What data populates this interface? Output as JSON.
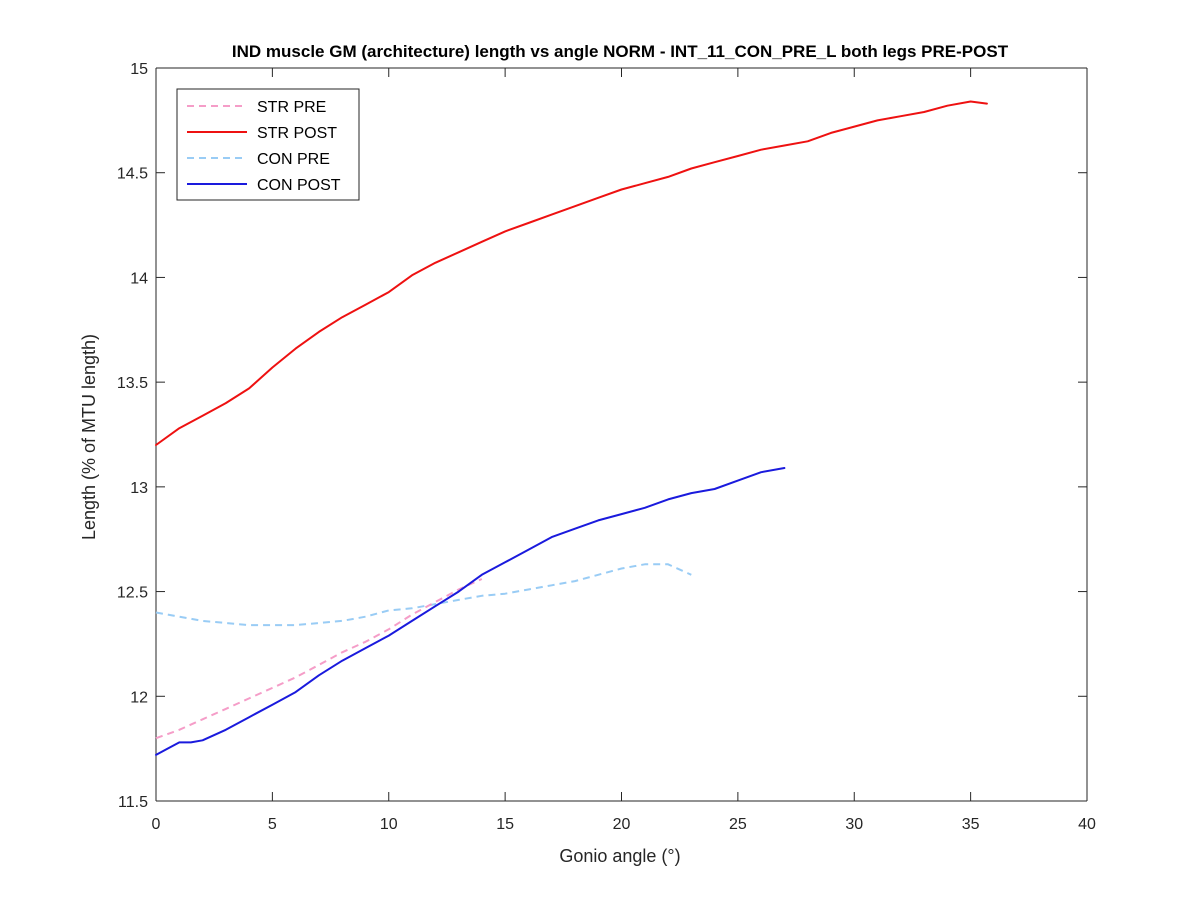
{
  "chart_data": {
    "type": "line",
    "title": "IND muscle GM (architecture) length vs angle NORM - INT_11_CON_PRE_L both legs PRE-POST",
    "xlabel": "Gonio angle (°)",
    "ylabel": "Length (% of MTU length)",
    "xlim": [
      0,
      40
    ],
    "ylim": [
      11.5,
      15
    ],
    "xticks": [
      "0",
      "5",
      "10",
      "15",
      "20",
      "25",
      "30",
      "35",
      "40"
    ],
    "yticks": [
      "11.5",
      "12",
      "12.5",
      "13",
      "13.5",
      "14",
      "14.5",
      "15"
    ],
    "grid": false,
    "legend_position": "top-left",
    "series": [
      {
        "name": "STR PRE",
        "color": "#F59DC8",
        "dashed": true,
        "x": [
          0,
          1,
          2,
          3,
          4,
          5,
          6,
          7,
          8,
          9,
          10,
          11,
          12,
          13,
          14
        ],
        "y": [
          11.8,
          11.84,
          11.89,
          11.94,
          11.99,
          12.04,
          12.09,
          12.15,
          12.21,
          12.26,
          12.32,
          12.39,
          12.45,
          12.51,
          12.56
        ]
      },
      {
        "name": "STR POST",
        "color": "#EE1111",
        "dashed": false,
        "x": [
          0,
          1,
          2,
          3,
          4,
          5,
          6,
          7,
          8,
          9,
          10,
          11,
          12,
          13,
          14,
          15,
          16,
          17,
          18,
          19,
          20,
          21,
          22,
          23,
          24,
          25,
          26,
          27,
          28,
          29,
          30,
          31,
          32,
          33,
          34,
          35,
          35.7
        ],
        "y": [
          13.2,
          13.28,
          13.34,
          13.4,
          13.47,
          13.57,
          13.66,
          13.74,
          13.81,
          13.87,
          13.93,
          14.01,
          14.07,
          14.12,
          14.17,
          14.22,
          14.26,
          14.3,
          14.34,
          14.38,
          14.42,
          14.45,
          14.48,
          14.52,
          14.55,
          14.58,
          14.61,
          14.63,
          14.65,
          14.69,
          14.72,
          14.75,
          14.77,
          14.79,
          14.82,
          14.84,
          14.83
        ]
      },
      {
        "name": "CON PRE",
        "color": "#99CCF5",
        "dashed": true,
        "x": [
          0,
          1,
          2,
          3,
          4,
          5,
          6,
          7,
          8,
          9,
          10,
          11,
          12,
          13,
          14,
          15,
          16,
          17,
          18,
          19,
          20,
          21,
          22,
          23
        ],
        "y": [
          12.4,
          12.38,
          12.36,
          12.35,
          12.34,
          12.34,
          12.34,
          12.35,
          12.36,
          12.38,
          12.41,
          12.42,
          12.44,
          12.46,
          12.48,
          12.49,
          12.51,
          12.53,
          12.55,
          12.58,
          12.61,
          12.63,
          12.63,
          12.58
        ]
      },
      {
        "name": "CON POST",
        "color": "#1A1ADD",
        "dashed": false,
        "x": [
          0,
          0.5,
          1,
          1.5,
          2,
          3,
          4,
          5,
          6,
          7,
          8,
          9,
          10,
          11,
          12,
          13,
          14,
          15,
          16,
          17,
          18,
          19,
          20,
          21,
          22,
          23,
          24,
          25,
          26,
          27
        ],
        "y": [
          11.72,
          11.75,
          11.78,
          11.78,
          11.79,
          11.84,
          11.9,
          11.96,
          12.02,
          12.1,
          12.17,
          12.23,
          12.29,
          12.36,
          12.43,
          12.5,
          12.58,
          12.64,
          12.7,
          12.76,
          12.8,
          12.84,
          12.87,
          12.9,
          12.94,
          12.97,
          12.99,
          13.03,
          13.07,
          13.09
        ]
      }
    ]
  }
}
